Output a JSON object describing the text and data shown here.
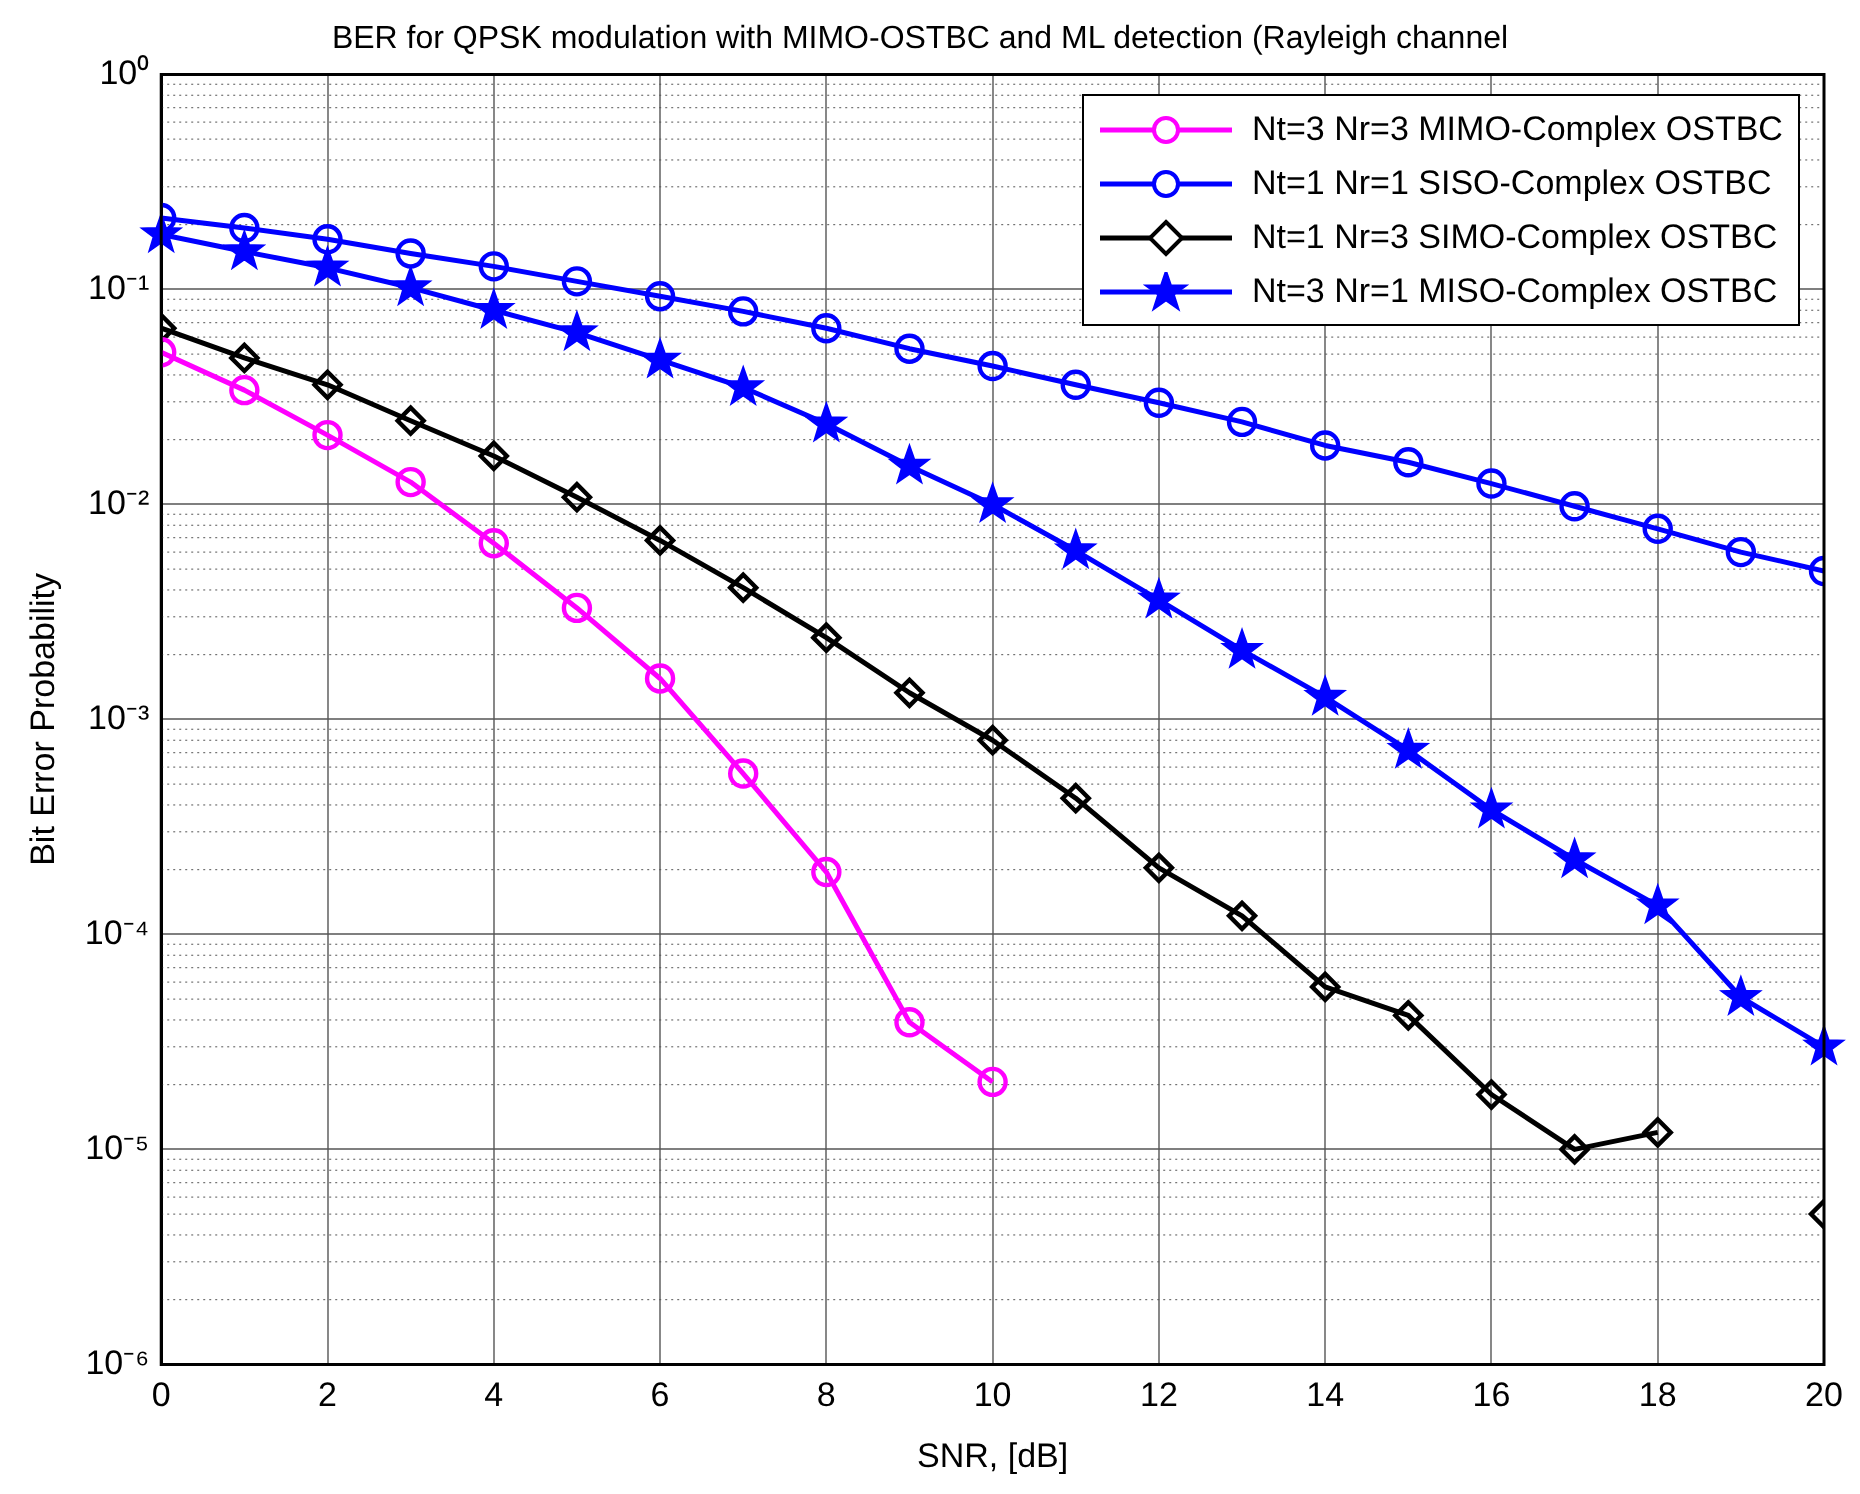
{
  "chart_data": {
    "type": "line",
    "title": "BER for QPSK modulation with MIMO-OSTBC and ML detection (Rayleigh channel",
    "xlabel": "SNR, [dB]",
    "ylabel": "Bit Error Probability",
    "x": [
      0,
      1,
      2,
      3,
      4,
      5,
      6,
      7,
      8,
      9,
      10,
      11,
      12,
      13,
      14,
      15,
      16,
      17,
      18,
      19,
      20
    ],
    "series": [
      {
        "name": "Nt=3 Nr=3 MIMO-Complex OSTBC",
        "color": "#ff00ff",
        "marker": "circle",
        "values": [
          0.051,
          0.034,
          0.021,
          0.0127,
          0.0066,
          0.0033,
          0.00155,
          0.00056,
          0.000195,
          3.9e-05,
          2.06e-05,
          null,
          null,
          null,
          null,
          null,
          null,
          null,
          null,
          null,
          null
        ]
      },
      {
        "name": "Nt=1 Nr=1 SISO-Complex OSTBC",
        "color": "#0000ff",
        "marker": "circle",
        "values": [
          0.215,
          0.193,
          0.171,
          0.147,
          0.128,
          0.109,
          0.093,
          0.079,
          0.066,
          0.053,
          0.044,
          0.036,
          0.0297,
          0.0242,
          0.0188,
          0.0157,
          0.0125,
          0.0098,
          0.0077,
          0.006,
          0.0049
        ]
      },
      {
        "name": "Nt=1 Nr=3 SIMO-Complex OSTBC",
        "color": "#000000",
        "marker": "diamond",
        "values": [
          0.066,
          0.048,
          0.036,
          0.0245,
          0.0168,
          0.0108,
          0.0068,
          0.0041,
          0.0024,
          0.00133,
          0.0008,
          0.00043,
          0.000204,
          0.000122,
          5.7e-05,
          4.2e-05,
          1.8e-05,
          1e-05,
          1.2e-05,
          null,
          5e-06
        ]
      },
      {
        "name": "Nt=3 Nr=1 MISO-Complex OSTBC",
        "color": "#0000ff",
        "marker": "star",
        "values": [
          0.18,
          0.15,
          0.126,
          0.102,
          0.08,
          0.063,
          0.047,
          0.035,
          0.0237,
          0.0151,
          0.01,
          0.0061,
          0.0036,
          0.0021,
          0.00127,
          0.00072,
          0.00038,
          0.000223,
          0.000136,
          5.1e-05,
          3e-05
        ]
      }
    ],
    "xlim": [
      0,
      20
    ],
    "xticks": [
      0,
      2,
      4,
      6,
      8,
      10,
      12,
      14,
      16,
      18,
      20
    ],
    "ylim": [
      1e-06,
      1
    ],
    "yticks": [
      {
        "value": 1e-06,
        "label": "10⁻⁶"
      },
      {
        "value": 1e-05,
        "label": "10⁻⁵"
      },
      {
        "value": 0.0001,
        "label": "10⁻⁴"
      },
      {
        "value": 0.001,
        "label": "10⁻³"
      },
      {
        "value": 0.01,
        "label": "10⁻²"
      },
      {
        "value": 0.1,
        "label": "10⁻¹"
      },
      {
        "value": 1,
        "label": "10⁰"
      }
    ],
    "log": "y",
    "grid": true,
    "legend": "top right",
    "line_style": "solid"
  }
}
